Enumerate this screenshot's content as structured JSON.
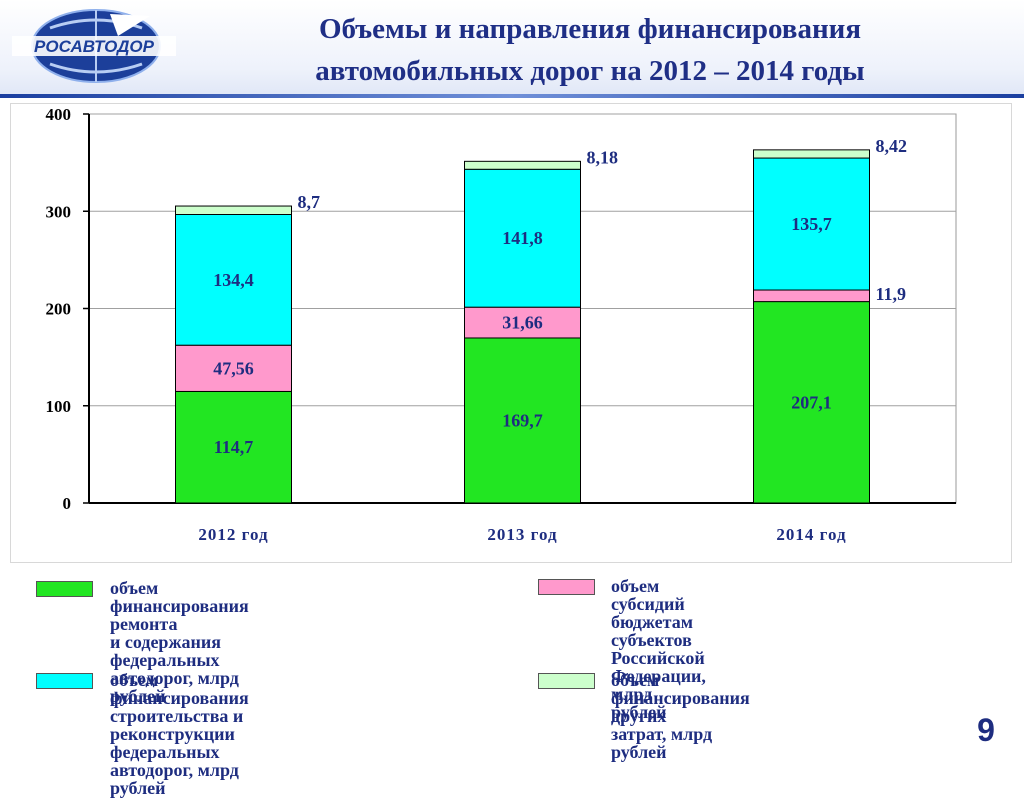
{
  "header": {
    "logo_text": "РОСАВТОДОР",
    "title_line1": "Объемы и направления финансирования",
    "title_line2": "автомобильных дорог на 2012 – 2014 годы"
  },
  "colors": {
    "title": "#1f2f86",
    "text": "#1e2d80",
    "repair": "#22e622",
    "subsidies": "#ff99cc",
    "construction": "#00ffff",
    "other": "#ccffcc"
  },
  "chart_data": {
    "type": "bar",
    "stacked": true,
    "title": "",
    "xlabel": "",
    "ylabel": "",
    "ylim": [
      0,
      400
    ],
    "yticks": [
      0,
      100,
      200,
      300,
      400
    ],
    "grid": true,
    "categories": [
      "2012 год",
      "2013 год",
      "2014 год"
    ],
    "series": [
      {
        "name": "объем финансирования ремонта и содержания федеральных автодорог, млрд рублей",
        "color": "#22e622",
        "values": [
          114.7,
          169.7,
          207.1
        ],
        "labels": [
          "114,7",
          "169,7",
          "207,1"
        ]
      },
      {
        "name": "объем субсидий бюджетам субъектов Российской Федерации, млрд рублей",
        "color": "#ff99cc",
        "values": [
          47.56,
          31.66,
          11.9
        ],
        "labels": [
          "47,56",
          "31,66",
          "11,9"
        ]
      },
      {
        "name": "объем финансирования строительства и реконструкции федеральных автодорог, млрд рублей",
        "color": "#00ffff",
        "values": [
          134.4,
          141.8,
          135.7
        ],
        "labels": [
          "134,4",
          "141,8",
          "135,7"
        ]
      },
      {
        "name": "объем финансирования других затрат, млрд рублей",
        "color": "#ccffcc",
        "values": [
          8.7,
          8.18,
          8.42
        ],
        "labels": [
          "8,7",
          "8,18",
          "8,42"
        ]
      }
    ]
  },
  "legend": [
    {
      "text": "объем финансирования ремонта\nи содержания федеральных\nавтодорог, млрд рублей",
      "color": "#22e622"
    },
    {
      "text": "объем субсидий бюджетам\nсубъектов Российской Федерации,\nмлрд рублей",
      "color": "#ff99cc"
    },
    {
      "text": "объем финансирования\nстроительства и реконструкции\nфедеральных автодорог, млрд рублей",
      "color": "#00ffff"
    },
    {
      "text": "объем финансирования других\nзатрат, млрд рублей",
      "color": "#ccffcc"
    }
  ],
  "page_number": "9"
}
